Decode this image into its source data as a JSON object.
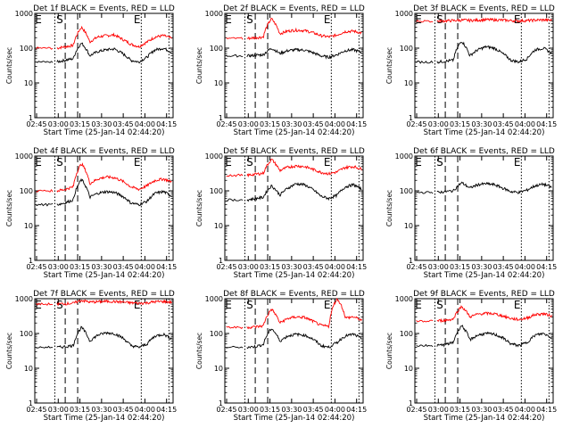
{
  "chart_data": [
    {
      "type": "line",
      "title": "Det 1f BLACK = Events, RED = LLD",
      "xlabel": "Start Time (25-Jan-14 02:44:20)",
      "ylabel": "Counts/sec",
      "x_ticks": [
        "02:45",
        "03:00",
        "03:15",
        "03:30",
        "03:45",
        "04:00",
        "04:15"
      ],
      "y_ticks": [
        "1",
        "10",
        "100",
        "1000"
      ],
      "yscale": "log",
      "ylim": [
        1,
        1000
      ],
      "markers": {
        "start": "S",
        "end": "E",
        "left": "E"
      },
      "series": [
        {
          "color": "#ff0000",
          "values": [
            100,
            110,
            120,
            400,
            150,
            210,
            230,
            240,
            180,
            130,
            110,
            150,
            210,
            230,
            190
          ]
        },
        {
          "color": "#000000",
          "values": [
            40,
            45,
            50,
            140,
            60,
            80,
            90,
            95,
            70,
            45,
            40,
            55,
            90,
            100,
            75
          ]
        }
      ]
    },
    {
      "type": "line",
      "title": "Det 2f BLACK = Events, RED = LLD",
      "xlabel": "Start Time (25-Jan-14 02:44:20)",
      "ylabel": "Counts/sec",
      "x_ticks": [
        "02:45",
        "03:00",
        "03:15",
        "03:30",
        "03:45",
        "04:00",
        "04:15"
      ],
      "y_ticks": [
        "1",
        "10",
        "100",
        "1000"
      ],
      "yscale": "log",
      "ylim": [
        1,
        1000
      ],
      "markers": {
        "start": "S",
        "end": "E",
        "left": "E"
      },
      "series": [
        {
          "color": "#ff0000",
          "values": [
            190,
            200,
            210,
            700,
            260,
            310,
            330,
            320,
            280,
            230,
            210,
            240,
            300,
            310,
            270
          ]
        },
        {
          "color": "#000000",
          "values": [
            60,
            62,
            65,
            100,
            70,
            85,
            90,
            88,
            75,
            60,
            55,
            65,
            85,
            90,
            75
          ]
        }
      ]
    },
    {
      "type": "line",
      "title": "Det 3f BLACK = Events, RED = LLD",
      "xlabel": "Start Time (25-Jan-14 02:44:20)",
      "ylabel": "Counts/sec",
      "x_ticks": [
        "02:45",
        "03:00",
        "03:15",
        "03:30",
        "03:45",
        "04:00",
        "04:15"
      ],
      "y_ticks": [
        "1",
        "10",
        "100",
        "1000"
      ],
      "yscale": "log",
      "ylim": [
        1,
        1000
      ],
      "markers": {
        "start": "S",
        "end": "E",
        "left": "E"
      },
      "series": [
        {
          "color": "#ff0000",
          "values": [
            600,
            610,
            620,
            640,
            630,
            640,
            660,
            650,
            640,
            620,
            610,
            620,
            640,
            650,
            630
          ]
        },
        {
          "color": "#000000",
          "values": [
            40,
            42,
            45,
            160,
            60,
            90,
            110,
            100,
            70,
            45,
            40,
            50,
            90,
            100,
            70
          ]
        }
      ]
    },
    {
      "type": "line",
      "title": "Det 4f BLACK = Events, RED = LLD",
      "xlabel": "Start Time (25-Jan-14 02:44:20)",
      "ylabel": "Counts/sec",
      "x_ticks": [
        "02:45",
        "03:00",
        "03:15",
        "03:30",
        "03:45",
        "04:00",
        "04:15"
      ],
      "y_ticks": [
        "1",
        "10",
        "100",
        "1000"
      ],
      "yscale": "log",
      "ylim": [
        1,
        1000
      ],
      "markers": {
        "start": "S",
        "end": "E",
        "left": "E"
      },
      "series": [
        {
          "color": "#ff0000",
          "values": [
            100,
            110,
            130,
            600,
            160,
            220,
            250,
            240,
            190,
            130,
            110,
            140,
            200,
            220,
            180
          ]
        },
        {
          "color": "#000000",
          "values": [
            40,
            45,
            55,
            210,
            65,
            85,
            95,
            90,
            70,
            45,
            40,
            50,
            85,
            95,
            70
          ]
        }
      ]
    },
    {
      "type": "line",
      "title": "Det 5f BLACK = Events, RED = LLD",
      "xlabel": "Start Time (25-Jan-14 02:44:20)",
      "ylabel": "Counts/sec",
      "x_ticks": [
        "02:45",
        "03:00",
        "03:15",
        "03:30",
        "03:45",
        "04:00",
        "04:15"
      ],
      "y_ticks": [
        "1",
        "10",
        "100",
        "1000"
      ],
      "yscale": "log",
      "ylim": [
        1,
        1000
      ],
      "markers": {
        "start": "S",
        "end": "E",
        "left": "E"
      },
      "series": [
        {
          "color": "#ff0000",
          "values": [
            280,
            300,
            320,
            800,
            380,
            480,
            520,
            500,
            420,
            340,
            310,
            350,
            470,
            500,
            420
          ]
        },
        {
          "color": "#000000",
          "values": [
            55,
            60,
            65,
            140,
            75,
            120,
            160,
            150,
            110,
            70,
            60,
            75,
            130,
            150,
            110
          ]
        }
      ]
    },
    {
      "type": "line",
      "title": "Det 6f BLACK = Events, RED = LLD",
      "xlabel": "Start Time (25-Jan-14 02:44:20)",
      "ylabel": "Counts/sec",
      "x_ticks": [
        "02:45",
        "03:00",
        "03:15",
        "03:30",
        "03:45",
        "04:00",
        "04:15"
      ],
      "y_ticks": [
        "1",
        "10",
        "100",
        "1000"
      ],
      "yscale": "log",
      "ylim": [
        1,
        1000
      ],
      "markers": {
        "start": "S",
        "end": "E",
        "left": "E"
      },
      "series": [
        {
          "color": "#000000",
          "values": [
            90,
            95,
            100,
            170,
            120,
            150,
            160,
            150,
            120,
            95,
            90,
            105,
            140,
            155,
            125
          ]
        }
      ]
    },
    {
      "type": "line",
      "title": "Det 7f BLACK = Events, RED = LLD",
      "xlabel": "Start Time (25-Jan-14 02:44:20)",
      "ylabel": "Counts/sec",
      "x_ticks": [
        "02:45",
        "03:00",
        "03:15",
        "03:30",
        "03:45",
        "04:00",
        "04:15"
      ],
      "y_ticks": [
        "1",
        "10",
        "100",
        "1000"
      ],
      "yscale": "log",
      "ylim": [
        1,
        1000
      ],
      "markers": {
        "start": "S",
        "end": "E",
        "left": "E"
      },
      "series": [
        {
          "color": "#ff0000",
          "values": [
            700,
            720,
            740,
            900,
            800,
            820,
            840,
            830,
            800,
            760,
            740,
            760,
            820,
            830,
            790
          ]
        },
        {
          "color": "#000000",
          "values": [
            40,
            42,
            45,
            150,
            60,
            90,
            105,
            100,
            75,
            45,
            40,
            50,
            85,
            95,
            70
          ]
        }
      ]
    },
    {
      "type": "line",
      "title": "Det 8f BLACK = Events, RED = LLD",
      "xlabel": "Start Time (25-Jan-14 02:44:20)",
      "ylabel": "Counts/sec",
      "x_ticks": [
        "02:45",
        "03:00",
        "03:15",
        "03:30",
        "03:45",
        "04:00",
        "04:15"
      ],
      "y_ticks": [
        "1",
        "10",
        "100",
        "1000"
      ],
      "yscale": "log",
      "ylim": [
        1,
        1000
      ],
      "markers": {
        "start": "S",
        "end": "E",
        "left": "E"
      },
      "series": [
        {
          "color": "#ff0000",
          "values": [
            150,
            155,
            165,
            500,
            200,
            270,
            300,
            290,
            230,
            170,
            160,
            1000,
            280,
            300,
            240
          ]
        },
        {
          "color": "#000000",
          "values": [
            40,
            42,
            48,
            140,
            60,
            85,
            95,
            90,
            70,
            45,
            40,
            55,
            85,
            95,
            70
          ]
        }
      ]
    },
    {
      "type": "line",
      "title": "Det 9f BLACK = Events, RED = LLD",
      "xlabel": "Start Time (25-Jan-14 02:44:20)",
      "ylabel": "Counts/sec",
      "x_ticks": [
        "02:45",
        "03:00",
        "03:15",
        "03:30",
        "03:45",
        "04:00",
        "04:15"
      ],
      "y_ticks": [
        "1",
        "10",
        "100",
        "1000"
      ],
      "yscale": "log",
      "ylim": [
        1,
        1000
      ],
      "markers": {
        "start": "S",
        "end": "E",
        "left": "E"
      },
      "series": [
        {
          "color": "#ff0000",
          "values": [
            230,
            240,
            260,
            600,
            300,
            360,
            380,
            370,
            320,
            270,
            250,
            280,
            350,
            370,
            320
          ]
        },
        {
          "color": "#000000",
          "values": [
            45,
            48,
            55,
            170,
            65,
            90,
            100,
            95,
            75,
            50,
            45,
            55,
            90,
            100,
            75
          ]
        }
      ]
    }
  ]
}
